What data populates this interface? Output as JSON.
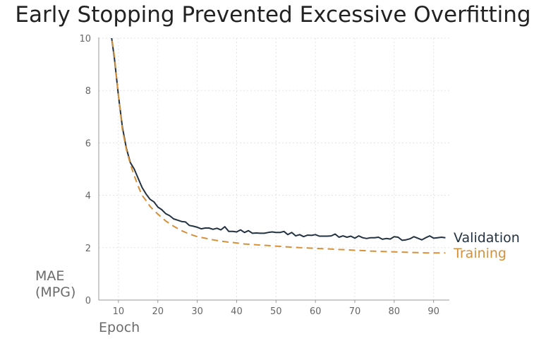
{
  "chart_data": {
    "type": "line",
    "title": "Early Stopping Prevented Excessive Overfitting",
    "xlabel": "Epoch",
    "ylabel_lines": [
      "MAE",
      "(MPG)"
    ],
    "xlim": [
      5,
      94
    ],
    "ylim": [
      0,
      10
    ],
    "x_ticks": [
      10,
      20,
      30,
      40,
      50,
      60,
      70,
      80,
      90
    ],
    "y_ticks": [
      0,
      2,
      4,
      6,
      8,
      10
    ],
    "grid": true,
    "legend_placement": "right, at line ends",
    "series": [
      {
        "name": "Validation",
        "color": "#233240",
        "style": "solid",
        "x": [
          8,
          9,
          10,
          11,
          12,
          13,
          14,
          15,
          16,
          17,
          18,
          19,
          20,
          21,
          22,
          23,
          24,
          25,
          26,
          27,
          28,
          29,
          30,
          31,
          32,
          33,
          34,
          35,
          36,
          37,
          38,
          39,
          40,
          41,
          42,
          43,
          44,
          45,
          46,
          47,
          48,
          49,
          50,
          51,
          52,
          53,
          54,
          55,
          56,
          57,
          58,
          59,
          60,
          61,
          62,
          63,
          64,
          65,
          66,
          67,
          68,
          69,
          70,
          71,
          72,
          73,
          74,
          75,
          76,
          77,
          78,
          79,
          80,
          81,
          82,
          83,
          84,
          85,
          86,
          87,
          88,
          89,
          90,
          91,
          92,
          93
        ],
        "y": [
          10.3,
          9.2,
          7.8,
          6.6,
          5.8,
          5.25,
          5.0,
          4.65,
          4.3,
          4.05,
          3.85,
          3.75,
          3.55,
          3.45,
          3.3,
          3.22,
          3.1,
          3.05,
          3.0,
          2.98,
          2.85,
          2.82,
          2.78,
          2.72,
          2.75,
          2.75,
          2.7,
          2.74,
          2.68,
          2.8,
          2.62,
          2.62,
          2.6,
          2.68,
          2.58,
          2.65,
          2.55,
          2.56,
          2.55,
          2.55,
          2.58,
          2.6,
          2.58,
          2.58,
          2.62,
          2.5,
          2.58,
          2.45,
          2.5,
          2.42,
          2.48,
          2.47,
          2.5,
          2.44,
          2.44,
          2.44,
          2.45,
          2.52,
          2.4,
          2.45,
          2.4,
          2.44,
          2.36,
          2.45,
          2.38,
          2.35,
          2.38,
          2.38,
          2.4,
          2.32,
          2.35,
          2.33,
          2.42,
          2.4,
          2.28,
          2.3,
          2.34,
          2.42,
          2.36,
          2.3,
          2.38,
          2.45,
          2.36,
          2.38,
          2.4,
          2.38
        ]
      },
      {
        "name": "Training",
        "color": "#d4913a",
        "style": "dashed",
        "x": [
          8,
          9,
          10,
          11,
          12,
          13,
          14,
          15,
          16,
          17,
          18,
          19,
          20,
          22,
          24,
          26,
          28,
          30,
          32,
          34,
          36,
          38,
          40,
          42,
          44,
          46,
          48,
          50,
          52,
          54,
          56,
          58,
          60,
          62,
          64,
          66,
          68,
          70,
          72,
          74,
          76,
          78,
          80,
          82,
          84,
          86,
          88,
          90,
          92,
          93
        ],
        "y": [
          10.3,
          9.3,
          7.8,
          6.5,
          5.75,
          5.2,
          4.75,
          4.35,
          4.0,
          3.8,
          3.58,
          3.42,
          3.28,
          3.02,
          2.82,
          2.65,
          2.52,
          2.42,
          2.36,
          2.3,
          2.25,
          2.21,
          2.18,
          2.14,
          2.12,
          2.1,
          2.08,
          2.06,
          2.04,
          2.02,
          2.0,
          1.99,
          1.97,
          1.96,
          1.95,
          1.93,
          1.92,
          1.9,
          1.89,
          1.87,
          1.86,
          1.85,
          1.84,
          1.83,
          1.82,
          1.81,
          1.8,
          1.8,
          1.8,
          1.8
        ]
      }
    ]
  }
}
